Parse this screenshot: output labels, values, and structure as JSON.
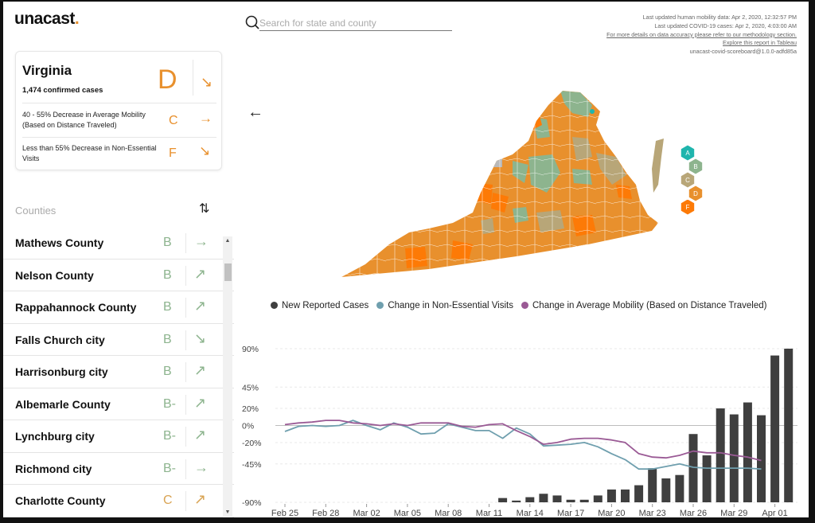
{
  "logo": {
    "text": "unacast",
    "dot": "."
  },
  "search": {
    "placeholder": "Search for state and county",
    "value": ""
  },
  "info": {
    "line1": "Last updated human mobility data: Apr 2, 2020, 12:32:57 PM",
    "line2": "Last updated COVID-19 cases: Apr 2, 2020, 4:03:00 AM",
    "line3": "For more details on data accuracy please refer to our methodology section.",
    "line4": "Explore this report in Tableau",
    "line5": "unacast-covid-scoreboard@1.0.0-adfd85a"
  },
  "state": {
    "name": "Virginia",
    "cases": "1,474 confirmed cases",
    "grade": "D",
    "arrow": "↘",
    "metrics": [
      {
        "text": "40 - 55% Decrease in Average Mobility (Based on Distance Traveled)",
        "grade": "C",
        "arrow": "→"
      },
      {
        "text": "Less than 55% Decrease in Non-Essential Visits",
        "grade": "F",
        "arrow": "↘"
      }
    ]
  },
  "counties": {
    "label": "Counties",
    "sort_icon": "sort-icon",
    "items": [
      {
        "name": "Mathews County",
        "grade": "B",
        "arrow": "→"
      },
      {
        "name": "Nelson County",
        "grade": "B",
        "arrow": "↗"
      },
      {
        "name": "Rappahannock County",
        "grade": "B",
        "arrow": "↗"
      },
      {
        "name": "Falls Church city",
        "grade": "B",
        "arrow": "↘"
      },
      {
        "name": "Harrisonburg city",
        "grade": "B",
        "arrow": "↗"
      },
      {
        "name": "Albemarle County",
        "grade": "B-",
        "arrow": "↗"
      },
      {
        "name": "Lynchburg city",
        "grade": "B-",
        "arrow": "↗"
      },
      {
        "name": "Richmond city",
        "grade": "B-",
        "arrow": "→"
      },
      {
        "name": "Charlotte County",
        "grade": "C",
        "arrow": "↗"
      }
    ]
  },
  "grade_scale": [
    {
      "label": "A",
      "color": "#1fb5ad"
    },
    {
      "label": "B",
      "color": "#8db48e"
    },
    {
      "label": "C",
      "color": "#b8a678"
    },
    {
      "label": "D",
      "color": "#e8902d"
    },
    {
      "label": "F",
      "color": "#fd7a06"
    }
  ],
  "colors": {
    "grade_b": "#8db48e",
    "grade_c": "#d9a454",
    "orange": "#e8902d"
  },
  "legend": [
    {
      "label": "New Reported Cases",
      "color": "#3f3f3f"
    },
    {
      "label": "Change in Non-Essential Visits",
      "color": "#6f9fae"
    },
    {
      "label": "Change in Average Mobility (Based on Distance Traveled)",
      "color": "#9a5a95"
    }
  ],
  "chart_data": {
    "type": "bar+line",
    "x_ticks": [
      "Feb 25",
      "Feb 28",
      "Mar 02",
      "Mar 05",
      "Mar 08",
      "Mar 11",
      "Mar 14",
      "Mar 17",
      "Mar 20",
      "Mar 23",
      "Mar 26",
      "Mar 29",
      "Apr 01"
    ],
    "y_ticks": [
      "90%",
      "45%",
      "20%",
      "0%",
      "-20%",
      "-45%",
      "-90%"
    ],
    "ylim": [
      -90,
      90
    ],
    "bars": {
      "name": "New Reported Cases",
      "x": [
        16,
        17,
        18,
        19,
        20,
        21,
        22,
        23,
        24,
        25,
        26,
        27,
        28,
        29,
        30,
        31,
        32,
        33,
        34,
        35,
        36,
        37
      ],
      "values": [
        -85,
        -88,
        -84,
        -80,
        -82,
        -87,
        -87,
        -82,
        -75,
        -75,
        -70,
        -50,
        -62,
        -58,
        -10,
        -35,
        20,
        13,
        27,
        12,
        82,
        90
      ]
    },
    "lines": [
      {
        "name": "Change in Non-Essential Visits",
        "x": [
          0,
          1,
          2,
          3,
          4,
          5,
          6,
          7,
          8,
          9,
          10,
          11,
          12,
          13,
          14,
          15,
          16,
          17,
          18,
          19,
          20,
          21,
          22,
          23,
          24,
          25,
          26,
          27,
          28,
          29,
          30,
          31,
          32,
          33,
          34,
          35
        ],
        "values": [
          -7,
          -1,
          0,
          -1,
          0,
          6,
          0,
          -5,
          3,
          -2,
          -10,
          -9,
          2,
          -2,
          -6,
          -6,
          -15,
          -3,
          -10,
          -24,
          -23,
          -22,
          -20,
          -25,
          -33,
          -40,
          -51,
          -51,
          -48,
          -45,
          -49,
          -50,
          -50,
          -50,
          -50,
          -51
        ]
      },
      {
        "name": "Change in Average Mobility (Based on Distance Traveled)",
        "x": [
          0,
          1,
          2,
          3,
          4,
          5,
          6,
          7,
          8,
          9,
          10,
          11,
          12,
          13,
          14,
          15,
          16,
          17,
          18,
          19,
          20,
          21,
          22,
          23,
          24,
          25,
          26,
          27,
          28,
          29,
          30,
          31,
          32,
          33,
          34,
          35
        ],
        "values": [
          1,
          3,
          4,
          6,
          6,
          3,
          2,
          0,
          2,
          0,
          3,
          3,
          3,
          -1,
          -2,
          1,
          2,
          -6,
          -13,
          -22,
          -20,
          -16,
          -15,
          -15,
          -17,
          -20,
          -33,
          -37,
          -38,
          -35,
          -30,
          -32,
          -32,
          -35,
          -37,
          -41
        ]
      }
    ]
  }
}
